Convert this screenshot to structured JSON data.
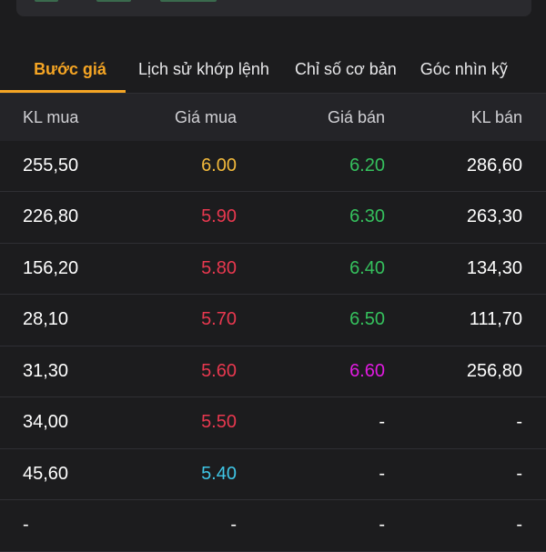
{
  "colors": {
    "background": "#1c1c1e",
    "accent": "#f5a524",
    "reference": "#f2b93b",
    "down": "#e8384f",
    "up": "#35c05d",
    "ceiling": "#e01be0",
    "floor": "#3fc6e6",
    "text": "#ffffff"
  },
  "tabs": [
    {
      "label": "Bước giá",
      "active": true
    },
    {
      "label": "Lịch sử khớp lệnh",
      "active": false
    },
    {
      "label": "Chỉ số cơ bản",
      "active": false
    },
    {
      "label": "Góc nhìn kỹ",
      "active": false
    }
  ],
  "table": {
    "headers": {
      "kl_mua": "KL mua",
      "gia_mua": "Giá mua",
      "gia_ban": "Giá bán",
      "kl_ban": "KL bán"
    },
    "rows": [
      {
        "kl_mua": "255,50",
        "gia_mua": "6.00",
        "gia_mua_color": "#f2b93b",
        "gia_ban": "6.20",
        "gia_ban_color": "#35c05d",
        "kl_ban": "286,60"
      },
      {
        "kl_mua": "226,80",
        "gia_mua": "5.90",
        "gia_mua_color": "#e8384f",
        "gia_ban": "6.30",
        "gia_ban_color": "#35c05d",
        "kl_ban": "263,30"
      },
      {
        "kl_mua": "156,20",
        "gia_mua": "5.80",
        "gia_mua_color": "#e8384f",
        "gia_ban": "6.40",
        "gia_ban_color": "#35c05d",
        "kl_ban": "134,30"
      },
      {
        "kl_mua": "28,10",
        "gia_mua": "5.70",
        "gia_mua_color": "#e8384f",
        "gia_ban": "6.50",
        "gia_ban_color": "#35c05d",
        "kl_ban": "111,70"
      },
      {
        "kl_mua": "31,30",
        "gia_mua": "5.60",
        "gia_mua_color": "#e8384f",
        "gia_ban": "6.60",
        "gia_ban_color": "#e01be0",
        "kl_ban": "256,80"
      },
      {
        "kl_mua": "34,00",
        "gia_mua": "5.50",
        "gia_mua_color": "#e8384f",
        "gia_ban": "-",
        "gia_ban_color": "#ffffff",
        "kl_ban": "-"
      },
      {
        "kl_mua": "45,60",
        "gia_mua": "5.40",
        "gia_mua_color": "#3fc6e6",
        "gia_ban": "-",
        "gia_ban_color": "#ffffff",
        "kl_ban": "-"
      },
      {
        "kl_mua": "-",
        "gia_mua": "-",
        "gia_mua_color": "#ffffff",
        "gia_ban": "-",
        "gia_ban_color": "#ffffff",
        "kl_ban": "-"
      }
    ]
  }
}
